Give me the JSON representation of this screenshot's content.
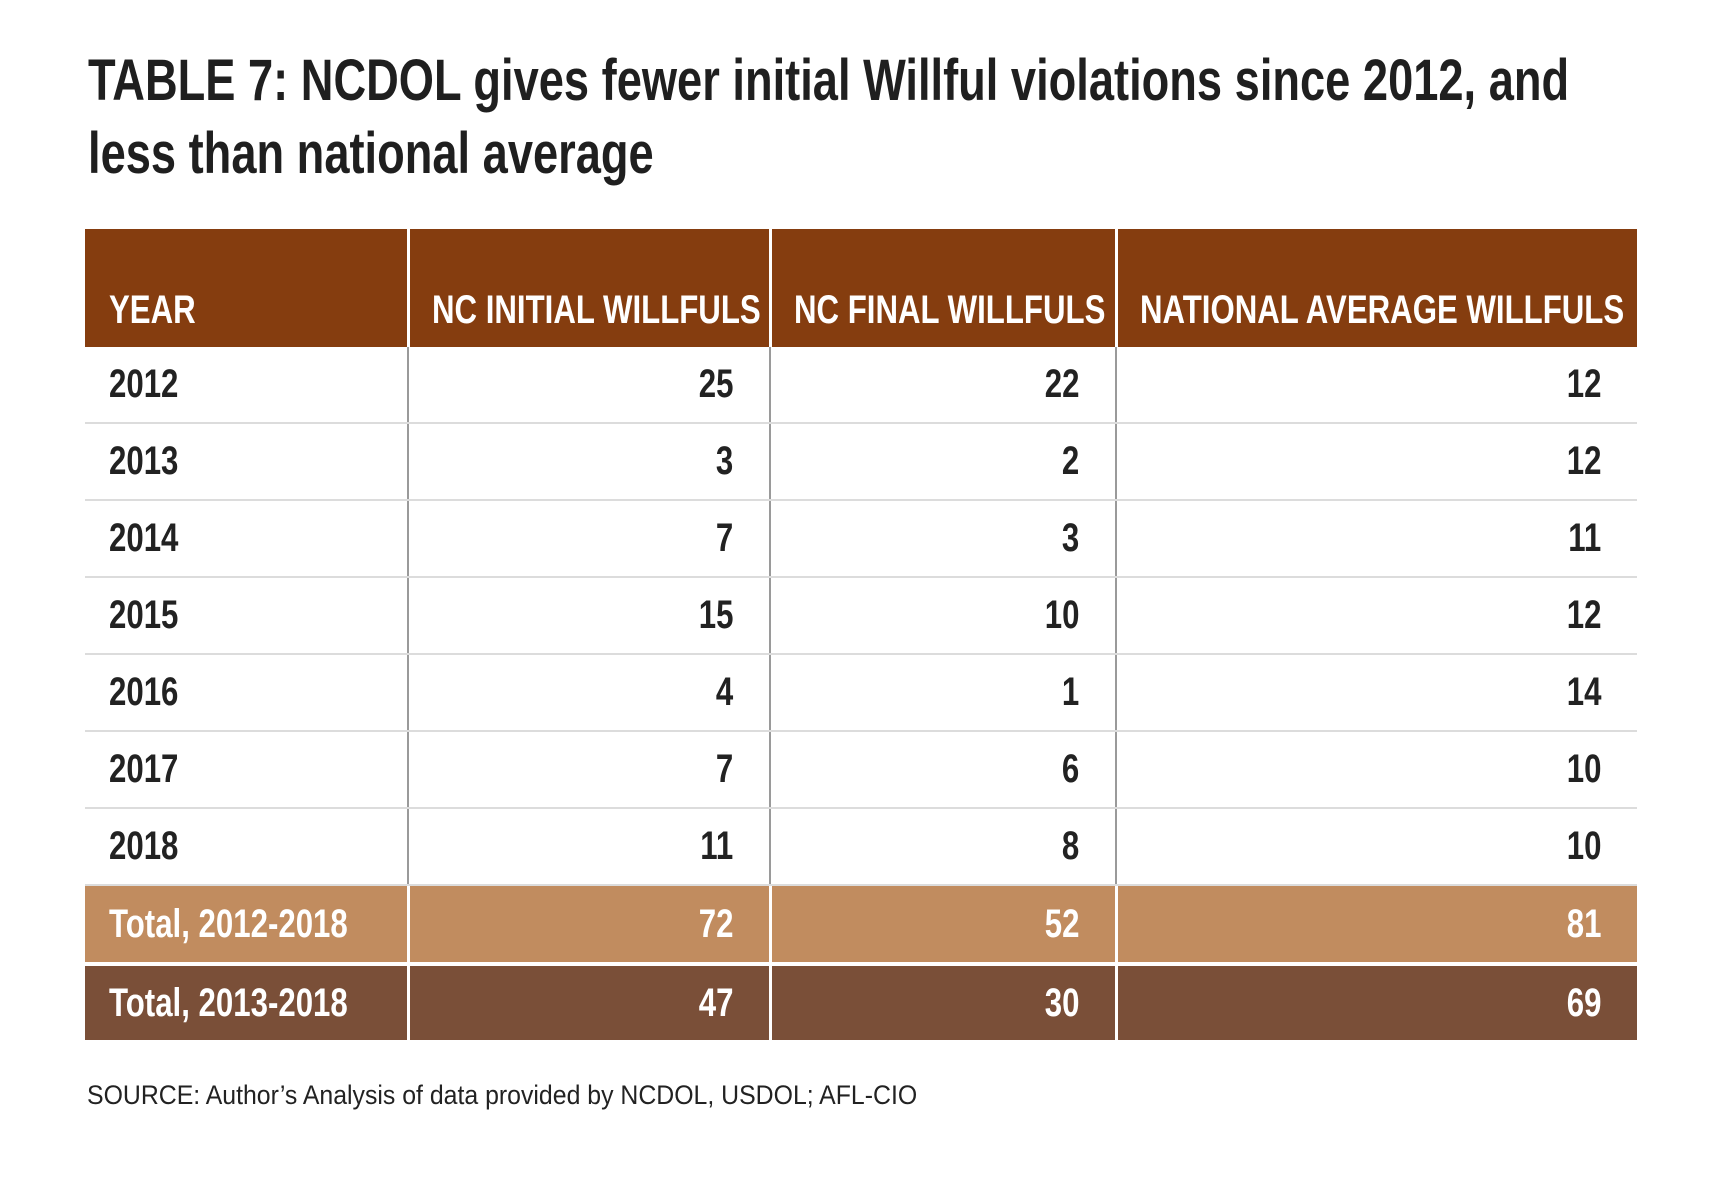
{
  "title": "TABLE 7:  NCDOL gives fewer initial Willful violations since 2012, and less than national average",
  "colors": {
    "header": "#853d0f",
    "total_2012_2018": "#c18c5f",
    "total_2013_2018": "#7a4f38"
  },
  "table": {
    "headers": [
      "YEAR",
      "NC INITIAL WILLFULS",
      "NC FINAL WILLFULS",
      "NATIONAL AVERAGE WILLFULS"
    ],
    "rows": [
      [
        "2012",
        "25",
        "22",
        "12"
      ],
      [
        "2013",
        "3",
        "2",
        "12"
      ],
      [
        "2014",
        "7",
        "3",
        "11"
      ],
      [
        "2015",
        "15",
        "10",
        "12"
      ],
      [
        "2016",
        "4",
        "1",
        "14"
      ],
      [
        "2017",
        "7",
        "6",
        "10"
      ],
      [
        "2018",
        "11",
        "8",
        "10"
      ]
    ],
    "totals": [
      [
        "Total, 2012-2018",
        "72",
        "52",
        "81"
      ],
      [
        "Total, 2013-2018",
        "47",
        "30",
        "69"
      ]
    ]
  },
  "source": "SOURCE: Author’s Analysis of data provided by NCDOL, USDOL; AFL-CIO"
}
